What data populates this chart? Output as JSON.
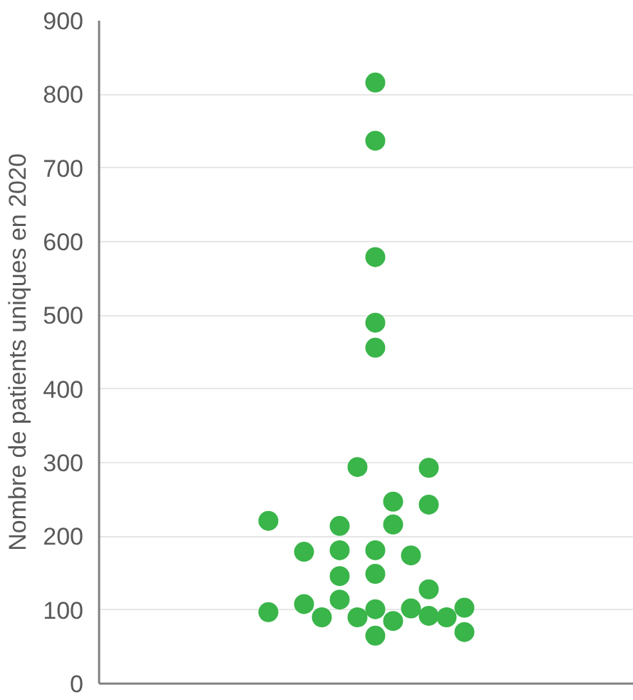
{
  "chart_data": {
    "type": "scatter",
    "ylabel": "Nombre de patients uniques en 2020",
    "categories": [
      null,
      null,
      null,
      null,
      null,
      null,
      null,
      null,
      null,
      null,
      null,
      null,
      null,
      null,
      null,
      null,
      null,
      null,
      null,
      null,
      null,
      null,
      null,
      null,
      null,
      null,
      null,
      null,
      null,
      null
    ],
    "series": [
      {
        "color": "#3ab54a",
        "values": [
          null,
          null,
          null,
          null,
          null,
          null,
          null,
          null,
          null,
          221,
          null,
          179,
          90,
          214,
          294,
          816,
          247,
          174,
          293,
          90,
          103,
          null,
          null,
          null,
          null,
          null,
          null,
          null,
          null,
          null
        ]
      },
      {
        "color": "#3ab54a",
        "values": [
          null,
          null,
          null,
          null,
          null,
          null,
          null,
          null,
          null,
          97,
          null,
          108,
          null,
          181,
          90,
          737,
          216,
          102,
          243,
          null,
          70,
          null,
          null,
          null,
          null,
          null,
          null,
          null,
          null,
          null
        ]
      },
      {
        "color": "#3ab54a",
        "values": [
          null,
          null,
          null,
          null,
          null,
          null,
          null,
          null,
          null,
          null,
          null,
          null,
          null,
          146,
          null,
          579,
          85,
          null,
          128,
          null,
          null,
          null,
          null,
          null,
          null,
          null,
          null,
          null,
          null,
          null
        ]
      },
      {
        "color": "#3ab54a",
        "values": [
          null,
          null,
          null,
          null,
          null,
          null,
          null,
          null,
          null,
          null,
          null,
          null,
          null,
          114,
          null,
          490,
          null,
          null,
          92,
          null,
          null,
          null,
          null,
          null,
          null,
          null,
          null,
          null,
          null,
          null
        ]
      },
      {
        "color": "#3ab54a",
        "values": [
          null,
          null,
          null,
          null,
          null,
          null,
          null,
          null,
          null,
          null,
          null,
          null,
          null,
          null,
          null,
          456,
          null,
          null,
          null,
          null,
          null,
          null,
          null,
          null,
          null,
          null,
          null,
          null,
          null,
          null
        ]
      },
      {
        "color": "#3ab54a",
        "values": [
          null,
          null,
          null,
          null,
          null,
          null,
          null,
          null,
          null,
          null,
          null,
          null,
          null,
          null,
          null,
          181,
          null,
          null,
          null,
          null,
          null,
          null,
          null,
          null,
          null,
          null,
          null,
          null,
          null,
          null
        ]
      },
      {
        "color": "#3ab54a",
        "values": [
          null,
          null,
          null,
          null,
          null,
          null,
          null,
          null,
          null,
          null,
          null,
          null,
          null,
          null,
          null,
          149,
          null,
          null,
          null,
          null,
          null,
          null,
          null,
          null,
          null,
          null,
          null,
          null,
          null,
          null
        ]
      },
      {
        "color": "#3ab54a",
        "values": [
          null,
          null,
          null,
          null,
          null,
          null,
          null,
          null,
          null,
          null,
          null,
          null,
          null,
          null,
          null,
          101,
          null,
          null,
          null,
          null,
          null,
          null,
          null,
          null,
          null,
          null,
          null,
          null,
          null,
          null
        ]
      },
      {
        "color": "#3ab54a",
        "values": [
          null,
          null,
          null,
          null,
          null,
          null,
          null,
          null,
          null,
          null,
          null,
          null,
          null,
          null,
          null,
          65,
          null,
          null,
          null,
          null,
          null,
          null,
          null,
          null,
          null,
          null,
          null,
          null,
          null,
          null
        ]
      }
    ],
    "ylim": [
      0,
      900
    ],
    "yticks": [
      0,
      100,
      200,
      300,
      400,
      500,
      600,
      700,
      800,
      900
    ],
    "tick_labels": "y",
    "grid": "y",
    "marker": "circle"
  }
}
